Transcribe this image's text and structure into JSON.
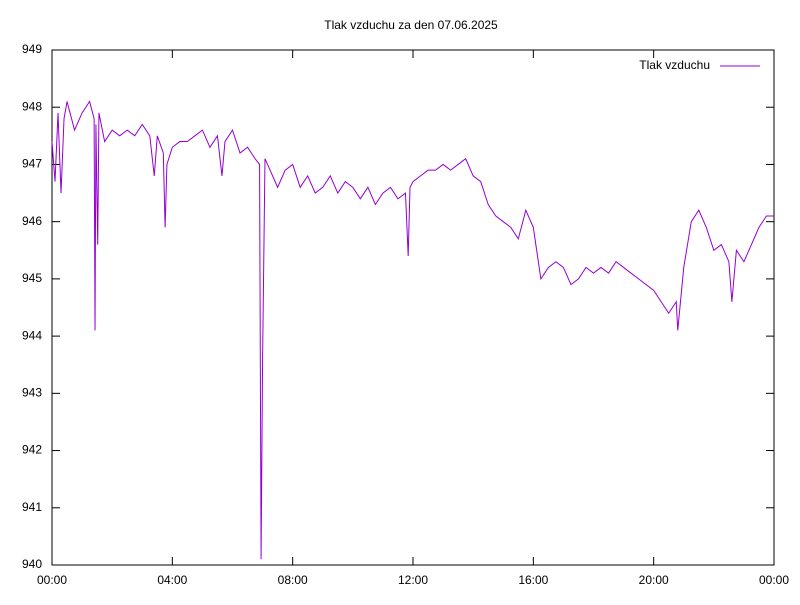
{
  "chart_data": {
    "type": "line",
    "title": "Tlak vzduchu za den 07.06.2025",
    "x": [
      0,
      0.1,
      0.2,
      0.3,
      0.4,
      0.5,
      0.75,
      1.0,
      1.25,
      1.4,
      1.43,
      1.46,
      1.52,
      1.56,
      1.75,
      2.0,
      2.25,
      2.5,
      2.75,
      3.0,
      3.25,
      3.4,
      3.5,
      3.7,
      3.76,
      3.82,
      4.0,
      4.25,
      4.5,
      4.75,
      5.0,
      5.25,
      5.5,
      5.65,
      5.75,
      6.0,
      6.25,
      6.5,
      6.75,
      6.9,
      6.95,
      7.0,
      7.08,
      7.25,
      7.5,
      7.75,
      8.0,
      8.25,
      8.5,
      8.75,
      9.0,
      9.25,
      9.5,
      9.75,
      10.0,
      10.25,
      10.5,
      10.75,
      11.0,
      11.25,
      11.5,
      11.75,
      11.84,
      11.9,
      12.0,
      12.25,
      12.5,
      12.75,
      13.0,
      13.25,
      13.5,
      13.75,
      14.0,
      14.25,
      14.5,
      14.75,
      15.0,
      15.25,
      15.5,
      15.75,
      16.0,
      16.25,
      16.5,
      16.75,
      17.0,
      17.25,
      17.5,
      17.75,
      18.0,
      18.25,
      18.5,
      18.75,
      19.0,
      19.25,
      19.5,
      19.75,
      20.0,
      20.25,
      20.5,
      20.75,
      20.8,
      21.0,
      21.25,
      21.5,
      21.75,
      22.0,
      22.25,
      22.5,
      22.6,
      22.75,
      23.0,
      23.25,
      23.5,
      23.75,
      24.0
    ],
    "series": [
      {
        "name": "Tlak vzduchu",
        "color": "#9400d3",
        "values": [
          947.4,
          946.7,
          947.9,
          946.5,
          947.8,
          948.1,
          947.6,
          947.9,
          948.1,
          947.8,
          944.1,
          947.7,
          945.6,
          947.9,
          947.4,
          947.6,
          947.5,
          947.6,
          947.5,
          947.7,
          947.5,
          946.8,
          947.5,
          947.2,
          945.9,
          947.0,
          947.3,
          947.4,
          947.4,
          947.5,
          947.6,
          947.3,
          947.5,
          946.8,
          947.4,
          947.6,
          947.2,
          947.3,
          947.1,
          947.0,
          940.1,
          943.6,
          947.1,
          946.9,
          946.6,
          946.9,
          947.0,
          946.6,
          946.8,
          946.5,
          946.6,
          946.8,
          946.5,
          946.7,
          946.6,
          946.4,
          946.6,
          946.3,
          946.5,
          946.6,
          946.4,
          946.5,
          945.4,
          946.6,
          946.7,
          946.8,
          946.9,
          946.9,
          947.0,
          946.9,
          947.0,
          947.1,
          946.8,
          946.7,
          946.3,
          946.1,
          946.0,
          945.9,
          945.7,
          946.2,
          945.9,
          945.0,
          945.2,
          945.3,
          945.2,
          944.9,
          945.0,
          945.2,
          945.1,
          945.2,
          945.1,
          945.3,
          945.2,
          945.1,
          945.0,
          944.9,
          944.8,
          944.6,
          944.4,
          944.6,
          944.1,
          945.2,
          946.0,
          946.2,
          945.9,
          945.5,
          945.6,
          945.3,
          944.6,
          945.5,
          945.3,
          945.6,
          945.9,
          946.1,
          946.1
        ]
      }
    ],
    "xlim": [
      0,
      24
    ],
    "xticks": [
      {
        "value": 0,
        "label": "00:00"
      },
      {
        "value": 4,
        "label": "04:00"
      },
      {
        "value": 8,
        "label": "08:00"
      },
      {
        "value": 12,
        "label": "12:00"
      },
      {
        "value": 16,
        "label": "16:00"
      },
      {
        "value": 20,
        "label": "20:00"
      },
      {
        "value": 24,
        "label": "00:00"
      }
    ],
    "ylim": [
      940,
      949
    ],
    "yticks": [
      940,
      941,
      942,
      943,
      944,
      945,
      946,
      947,
      948,
      949
    ],
    "legend": "top-right",
    "grid": false
  }
}
